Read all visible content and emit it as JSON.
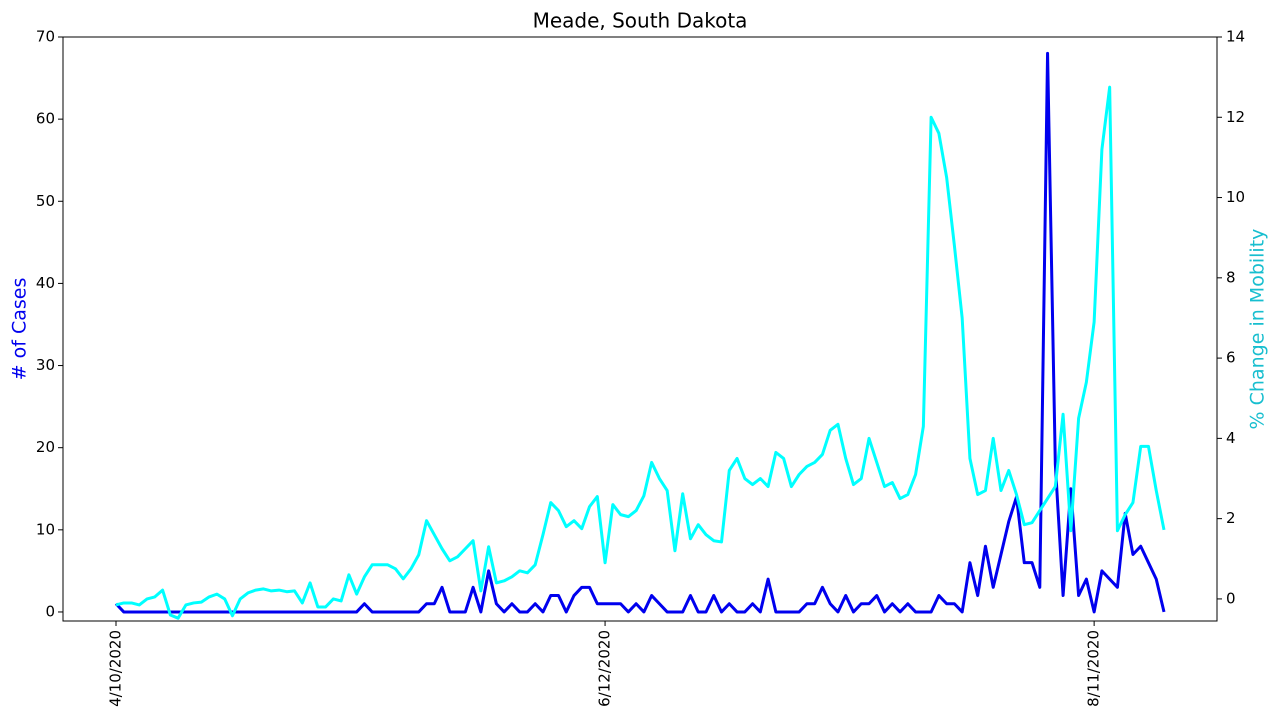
{
  "chart_data": {
    "type": "line",
    "title": "Meade, South Dakota",
    "ylabel": "# of Cases",
    "y2label": "% Change in Mobility",
    "categories": [
      "4/10/2020",
      null,
      null,
      null,
      null,
      null,
      null,
      null,
      null,
      null,
      null,
      null,
      null,
      null,
      null,
      null,
      null,
      null,
      null,
      null,
      null,
      null,
      null,
      null,
      null,
      null,
      null,
      null,
      null,
      null,
      null,
      null,
      null,
      null,
      null,
      null,
      null,
      null,
      null,
      null,
      null,
      null,
      null,
      null,
      null,
      null,
      null,
      null,
      null,
      null,
      null,
      null,
      null,
      null,
      null,
      null,
      null,
      null,
      null,
      null,
      null,
      null,
      null,
      "6/12/2020",
      null,
      null,
      null,
      null,
      null,
      null,
      null,
      null,
      null,
      null,
      null,
      null,
      null,
      null,
      null,
      null,
      null,
      null,
      null,
      null,
      null,
      null,
      null,
      null,
      null,
      null,
      null,
      null,
      null,
      null,
      null,
      null,
      null,
      null,
      null,
      null,
      null,
      null,
      null,
      null,
      null,
      null,
      null,
      null,
      null,
      null,
      null,
      null,
      null,
      null,
      null,
      null,
      null,
      null,
      null,
      null,
      null,
      null,
      null,
      null,
      null,
      null,
      "8/11/2020",
      null,
      null,
      null,
      null,
      null,
      null,
      null,
      null,
      null
    ],
    "series": [
      {
        "name": "# of Cases",
        "color": "#0000ee",
        "axis": "y",
        "values": [
          1,
          0,
          0,
          0,
          0,
          0,
          0,
          0,
          0,
          0,
          0,
          0,
          0,
          0,
          0,
          0,
          0,
          0,
          0,
          0,
          0,
          0,
          0,
          0,
          0,
          0,
          0,
          0,
          0,
          0,
          0,
          0,
          1,
          0,
          0,
          0,
          0,
          0,
          0,
          0,
          1,
          1,
          3,
          0,
          0,
          0,
          3,
          0,
          5,
          1,
          0,
          1,
          0,
          0,
          1,
          0,
          2,
          2,
          0,
          2,
          3,
          3,
          1,
          1,
          1,
          1,
          0,
          1,
          0,
          2,
          1,
          0,
          0,
          0,
          2,
          0,
          0,
          2,
          0,
          1,
          0,
          0,
          1,
          0,
          4,
          0,
          0,
          0,
          0,
          1,
          1,
          3,
          1,
          0,
          2,
          0,
          1,
          1,
          2,
          0,
          1,
          0,
          1,
          0,
          0,
          0,
          2,
          1,
          1,
          0,
          6,
          2,
          8,
          3,
          7,
          11,
          14,
          6,
          6,
          3,
          68,
          18,
          2,
          15,
          2,
          4,
          0,
          5,
          4,
          3,
          12,
          7,
          8,
          6,
          4,
          0
        ]
      },
      {
        "name": "% Change in Mobility",
        "color": "#00ffff",
        "axis": "y2",
        "values": [
          -0.15,
          -0.1,
          -0.1,
          -0.15,
          0.0,
          0.05,
          0.22,
          -0.4,
          -0.48,
          -0.15,
          -0.1,
          -0.08,
          0.05,
          0.12,
          0.0,
          -0.42,
          0.0,
          0.15,
          0.22,
          0.25,
          0.2,
          0.22,
          0.18,
          0.2,
          -0.1,
          0.4,
          -0.2,
          -0.2,
          0.0,
          -0.05,
          0.6,
          0.12,
          0.55,
          0.85,
          0.85,
          0.85,
          0.75,
          0.5,
          0.75,
          1.1,
          1.95,
          1.6,
          1.25,
          0.95,
          1.05,
          1.25,
          1.45,
          0.2,
          1.3,
          0.4,
          0.45,
          0.55,
          0.7,
          0.65,
          0.85,
          1.6,
          2.4,
          2.2,
          1.8,
          1.95,
          1.75,
          2.3,
          2.55,
          0.9,
          2.35,
          2.1,
          2.05,
          2.2,
          2.57,
          3.4,
          3.0,
          2.7,
          1.2,
          2.62,
          1.5,
          1.85,
          1.6,
          1.45,
          1.42,
          3.2,
          3.5,
          3.0,
          2.85,
          3.0,
          2.8,
          3.65,
          3.5,
          2.8,
          3.1,
          3.3,
          3.4,
          3.6,
          4.2,
          4.35,
          3.5,
          2.85,
          3.0,
          4.0,
          3.4,
          2.8,
          2.9,
          2.5,
          2.6,
          3.1,
          4.3,
          12.0,
          11.6,
          10.5,
          8.8,
          7.0,
          3.5,
          2.6,
          2.7,
          4.0,
          2.7,
          3.2,
          2.6,
          1.85,
          1.9,
          2.2,
          2.5,
          2.8,
          4.6,
          1.7,
          4.5,
          5.4,
          6.9,
          11.2,
          12.75,
          1.7,
          2.1,
          2.4,
          3.8,
          3.8,
          2.7,
          1.72
        ]
      }
    ],
    "ylim": [
      -1.1,
      70
    ],
    "yticks": [
      0,
      10,
      20,
      30,
      40,
      50,
      60,
      70
    ],
    "y2lim": [
      -0.55,
      14
    ],
    "y2ticks": [
      0,
      2,
      4,
      6,
      8,
      10,
      12,
      14
    ],
    "grid": false
  }
}
